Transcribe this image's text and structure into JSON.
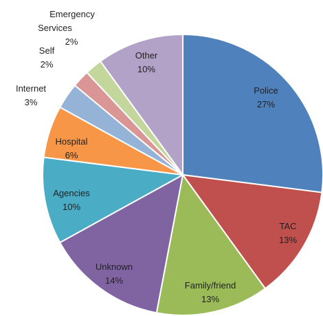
{
  "chart_data": {
    "type": "pie",
    "title": "",
    "slices": [
      {
        "label": "Police",
        "value": 27,
        "value_label": "27%",
        "color": "#4f81bd"
      },
      {
        "label": "TAC",
        "value": 13,
        "value_label": "13%",
        "color": "#c0504d"
      },
      {
        "label": "Family/friend",
        "value": 13,
        "value_label": "13%",
        "color": "#9bbb59"
      },
      {
        "label": "Unknown",
        "value": 14,
        "value_label": "14%",
        "color": "#8064a2"
      },
      {
        "label": "Agencies",
        "value": 10,
        "value_label": "10%",
        "color": "#4bacc6"
      },
      {
        "label": "Hospital",
        "value": 6,
        "value_label": "6%",
        "color": "#f79646"
      },
      {
        "label": "Internet",
        "value": 3,
        "value_label": "3%",
        "color": "#95b3d7"
      },
      {
        "label": "Self",
        "value": 2,
        "value_label": "2%",
        "color": "#d99694"
      },
      {
        "label": "Emergency Services",
        "value": 2,
        "value_label": "2%",
        "color": "#c3d69b"
      },
      {
        "label": "Other",
        "value": 10,
        "value_label": "10%",
        "color": "#b3a2c7"
      }
    ],
    "label_lines": {
      "emergency_1": "Emergency",
      "emergency_2": "Services"
    }
  }
}
